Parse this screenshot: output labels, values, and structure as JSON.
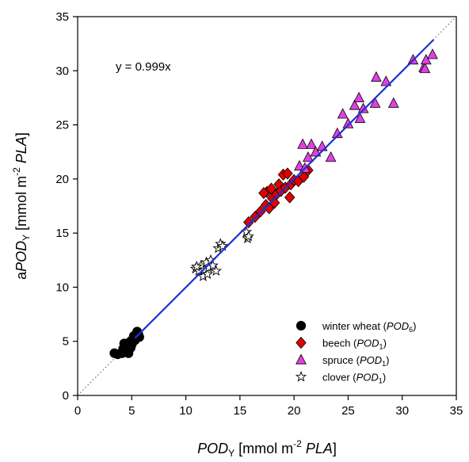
{
  "chart_data": {
    "type": "scatter",
    "xlabel": "POD_Y [mmol m^-2 PLA]",
    "ylabel": "aPOD_Y [mmol m^-2 PLA]",
    "xlim": [
      0,
      35
    ],
    "ylim": [
      0,
      35
    ],
    "x_ticks": [
      0,
      5,
      10,
      15,
      20,
      25,
      30,
      35
    ],
    "y_ticks": [
      0,
      5,
      10,
      15,
      20,
      25,
      30,
      35
    ],
    "annotation": "y = 0.999x",
    "grid": false,
    "legend_position": "bottom-right",
    "reference_line": {
      "label": "1:1",
      "style": "dotted",
      "color": "#555555"
    },
    "regression_line": {
      "slope": 0.999,
      "x_range": [
        5.3,
        32.9
      ],
      "color": "#1f2fd6"
    },
    "series": [
      {
        "name": "winter wheat (POD6)",
        "marker": "circle",
        "color": "#000000",
        "points": [
          [
            3.4,
            3.9
          ],
          [
            3.7,
            3.8
          ],
          [
            4.1,
            3.9
          ],
          [
            4.2,
            4.3
          ],
          [
            4.3,
            4.8
          ],
          [
            4.5,
            4.2
          ],
          [
            4.6,
            4.6
          ],
          [
            4.7,
            3.9
          ],
          [
            4.8,
            4.9
          ],
          [
            4.9,
            4.4
          ],
          [
            5.0,
            4.7
          ],
          [
            5.1,
            5.2
          ],
          [
            5.2,
            5.5
          ],
          [
            5.3,
            5.1
          ],
          [
            5.5,
            5.9
          ],
          [
            5.6,
            5.7
          ],
          [
            5.7,
            5.4
          ],
          [
            4.4,
            4.0
          ],
          [
            4.9,
            5.0
          ]
        ]
      },
      {
        "name": "beech (POD1)",
        "marker": "diamond",
        "color": "#e00000",
        "points": [
          [
            15.8,
            16.0
          ],
          [
            16.4,
            16.5
          ],
          [
            16.9,
            17.0
          ],
          [
            17.4,
            17.6
          ],
          [
            17.5,
            18.8
          ],
          [
            17.7,
            17.3
          ],
          [
            17.9,
            19.1
          ],
          [
            18.0,
            18.2
          ],
          [
            18.2,
            17.8
          ],
          [
            18.4,
            18.6
          ],
          [
            18.6,
            19.5
          ],
          [
            18.8,
            18.9
          ],
          [
            19.0,
            20.4
          ],
          [
            19.2,
            19.2
          ],
          [
            19.4,
            20.5
          ],
          [
            19.6,
            18.3
          ],
          [
            19.7,
            19.5
          ],
          [
            20.0,
            19.9
          ],
          [
            20.4,
            19.8
          ],
          [
            20.9,
            20.2
          ],
          [
            21.3,
            20.8
          ],
          [
            17.2,
            18.7
          ]
        ]
      },
      {
        "name": "spruce (POD1)",
        "marker": "triangle",
        "color": "#e040e0",
        "points": [
          [
            20.5,
            21.2
          ],
          [
            20.8,
            23.2
          ],
          [
            21.0,
            21.0
          ],
          [
            21.3,
            22.0
          ],
          [
            21.6,
            23.2
          ],
          [
            22.0,
            22.5
          ],
          [
            22.6,
            23.0
          ],
          [
            23.4,
            22.0
          ],
          [
            24.0,
            24.2
          ],
          [
            24.5,
            26.0
          ],
          [
            25.0,
            25.1
          ],
          [
            25.6,
            26.8
          ],
          [
            26.0,
            27.5
          ],
          [
            26.1,
            25.6
          ],
          [
            26.4,
            26.5
          ],
          [
            27.5,
            27.0
          ],
          [
            27.6,
            29.4
          ],
          [
            28.5,
            29.0
          ],
          [
            29.2,
            27.0
          ],
          [
            31.0,
            31.0
          ],
          [
            32.0,
            30.3
          ],
          [
            32.1,
            30.2
          ],
          [
            32.2,
            31.0
          ],
          [
            32.8,
            31.5
          ]
        ]
      },
      {
        "name": "clover (POD1)",
        "marker": "star",
        "color": "#ffffff",
        "points": [
          [
            10.9,
            11.7
          ],
          [
            11.2,
            11.5
          ],
          [
            11.4,
            12.0
          ],
          [
            11.6,
            11.0
          ],
          [
            11.7,
            11.6
          ],
          [
            11.9,
            12.3
          ],
          [
            12.0,
            11.2
          ],
          [
            12.1,
            11.8
          ],
          [
            12.3,
            12.5
          ],
          [
            12.5,
            12.0
          ],
          [
            12.8,
            11.5
          ],
          [
            13.0,
            13.6
          ],
          [
            13.2,
            14.0
          ],
          [
            13.4,
            13.8
          ],
          [
            15.6,
            15.1
          ],
          [
            15.7,
            14.5
          ],
          [
            15.8,
            14.7
          ],
          [
            11.0,
            11.9
          ]
        ]
      }
    ]
  },
  "legend": [
    {
      "marker": "circle",
      "color": "#000000",
      "text_pre": "winter wheat (",
      "text_it": "POD",
      "text_sub": "6",
      "text_post": ")"
    },
    {
      "marker": "diamond",
      "color": "#e00000",
      "text_pre": "beech (",
      "text_it": "POD",
      "text_sub": "1",
      "text_post": ")"
    },
    {
      "marker": "triangle",
      "color": "#e040e0",
      "text_pre": "spruce (",
      "text_it": "POD",
      "text_sub": "1",
      "text_post": ")"
    },
    {
      "marker": "star",
      "color": "#ffffff",
      "text_pre": "clover (",
      "text_it": "POD",
      "text_sub": "1",
      "text_post": ")"
    }
  ],
  "axes": {
    "x_title": {
      "italic": "POD",
      "sub": "Y",
      "unit_pre": "[mmol m",
      "sup": "-2",
      "unit_it": "PLA",
      "unit_post": "]"
    },
    "y_title": {
      "prefix": "a",
      "italic": "POD",
      "sub": "Y",
      "unit_pre": "[mmol m",
      "sup": "-2",
      "unit_it": "PLA",
      "unit_post": "]"
    }
  }
}
